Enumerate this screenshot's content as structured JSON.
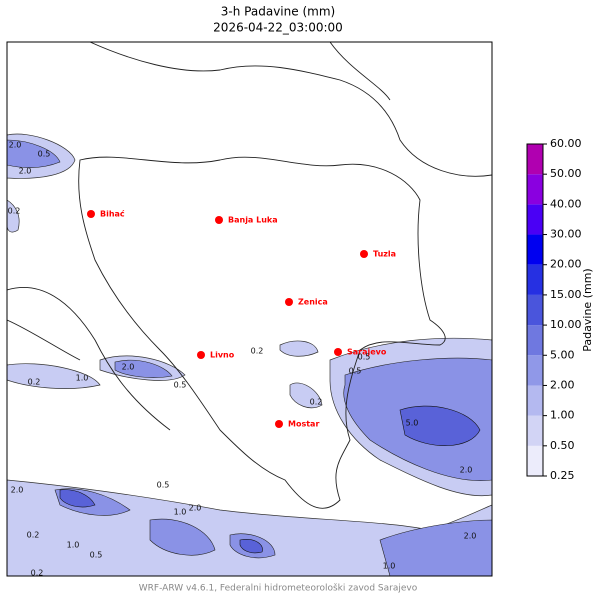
{
  "header": {
    "title": "3-h Padavine (mm)",
    "subtitle": "2026-04-22_03:00:00"
  },
  "cities": [
    "Bihać",
    "Banja Luka",
    "Tuzla",
    "Zenica",
    "Livno",
    "Sarajevo",
    "Mostar"
  ],
  "contour_labels": [
    "2.0",
    "0.5",
    "2.0",
    "0.2",
    "2.0",
    "0.5",
    "1.0",
    "0.2",
    "0.2",
    "0.5",
    "0.5",
    "0.2",
    "5.0",
    "2.0",
    "1.0",
    "0.2",
    "2.0",
    "1.0",
    "0.5",
    "0.2",
    "1.0",
    "2.0",
    "0.5",
    "2.0"
  ],
  "colorbar": {
    "label": "Padavine (mm)",
    "levels": [
      {
        "value": 0.25,
        "label": "0.25"
      },
      {
        "value": 0.5,
        "label": "0.50"
      },
      {
        "value": 1,
        "label": "1.00"
      },
      {
        "value": 2,
        "label": "2.00"
      },
      {
        "value": 5,
        "label": "5.00"
      },
      {
        "value": 10,
        "label": "10.00"
      },
      {
        "value": 15,
        "label": "15.00"
      },
      {
        "value": 20,
        "label": "20.00"
      },
      {
        "value": 30,
        "label": "30.00"
      },
      {
        "value": 40,
        "label": "40.00"
      },
      {
        "value": 50,
        "label": "50.00"
      },
      {
        "value": 60,
        "label": "60.00"
      }
    ],
    "colors": [
      "#ececfb",
      "#d2d4f5",
      "#b4b9f0",
      "#9098e8",
      "#6f78e0",
      "#4a55dc",
      "#2630e2",
      "#0000f0",
      "#4a00f5",
      "#8a00e0",
      "#b000b0"
    ]
  },
  "footer": "WRF-ARW v4.6.1, Federalni hidrometeorološki zavod Sarajevo"
}
